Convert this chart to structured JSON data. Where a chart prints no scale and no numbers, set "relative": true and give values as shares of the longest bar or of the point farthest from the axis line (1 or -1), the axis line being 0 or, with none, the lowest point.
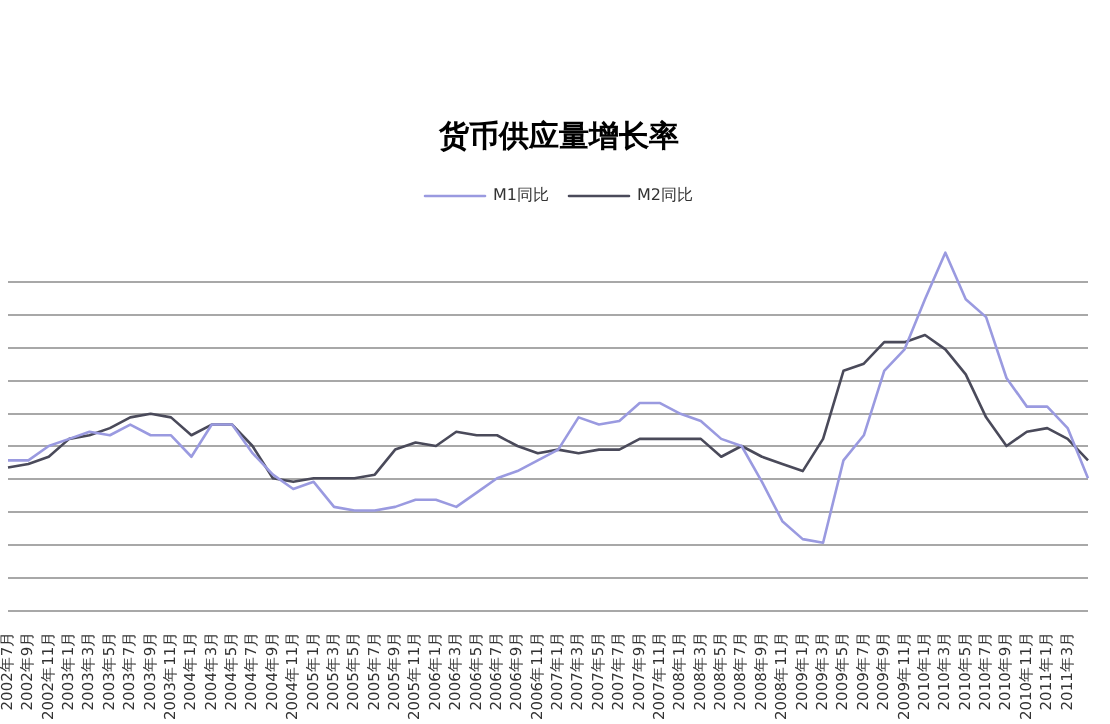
{
  "chart_data": {
    "type": "line",
    "title": "货币供应量增长率",
    "relative": true,
    "grid": "y",
    "legend": "top",
    "marker": "none",
    "line_style": "solid",
    "categories": [
      "2002年7月",
      "2002年9月",
      "2002年11月",
      "2003年1月",
      "2003年3月",
      "2003年5月",
      "2003年7月",
      "2003年9月",
      "2003年11月",
      "2004年1月",
      "2004年3月",
      "2004年5月",
      "2004年7月",
      "2004年9月",
      "2004年11月",
      "2005年1月",
      "2005年3月",
      "2005年5月",
      "2005年7月",
      "2005年9月",
      "2005年11月",
      "2006年1月",
      "2006年3月",
      "2006年5月",
      "2006年7月",
      "2006年9月",
      "2006年11月",
      "2007年1月",
      "2007年3月",
      "2007年5月",
      "2007年7月",
      "2007年9月",
      "2007年11月",
      "2008年1月",
      "2008年3月",
      "2008年5月",
      "2008年7月",
      "2008年9月",
      "2008年11月",
      "2009年1月",
      "2009年3月",
      "2009年5月",
      "2009年7月",
      "2009年9月",
      "2009年11月",
      "2010年1月",
      "2010年3月",
      "2010年5月",
      "2010年7月",
      "2010年9月",
      "2010年11月",
      "2011年1月",
      "2011年3月",
      null
    ],
    "series": [
      {
        "name": "M1同比",
        "color": "#9a9ae0",
        "values": [
          0.42,
          0.42,
          0.46,
          0.48,
          0.5,
          0.49,
          0.52,
          0.49,
          0.49,
          0.43,
          0.52,
          0.52,
          0.44,
          0.38,
          0.34,
          0.36,
          0.29,
          0.28,
          0.28,
          0.29,
          0.31,
          0.31,
          0.29,
          0.33,
          0.37,
          0.39,
          0.42,
          0.45,
          0.54,
          0.52,
          0.53,
          0.58,
          0.58,
          0.55,
          0.53,
          0.48,
          0.46,
          0.36,
          0.25,
          0.2,
          0.19,
          0.42,
          0.49,
          0.67,
          0.73,
          0.87,
          1,
          0.87,
          0.82,
          0.65,
          0.57,
          0.57,
          0.51,
          0.37
        ]
      },
      {
        "name": "M2同比",
        "color": "#4a4a5a",
        "values": [
          0.4,
          0.41,
          0.43,
          0.48,
          0.49,
          0.51,
          0.54,
          0.55,
          0.54,
          0.49,
          0.52,
          0.52,
          0.46,
          0.37,
          0.36,
          0.37,
          0.37,
          0.37,
          0.38,
          0.45,
          0.47,
          0.46,
          0.5,
          0.49,
          0.49,
          0.46,
          0.44,
          0.45,
          0.44,
          0.45,
          0.45,
          0.48,
          0.48,
          0.48,
          0.48,
          0.43,
          0.46,
          0.43,
          0.41,
          0.39,
          0.48,
          0.67,
          0.69,
          0.75,
          0.75,
          0.77,
          0.73,
          0.66,
          0.54,
          0.46,
          0.5,
          0.51,
          0.48,
          0.42
        ]
      }
    ]
  }
}
